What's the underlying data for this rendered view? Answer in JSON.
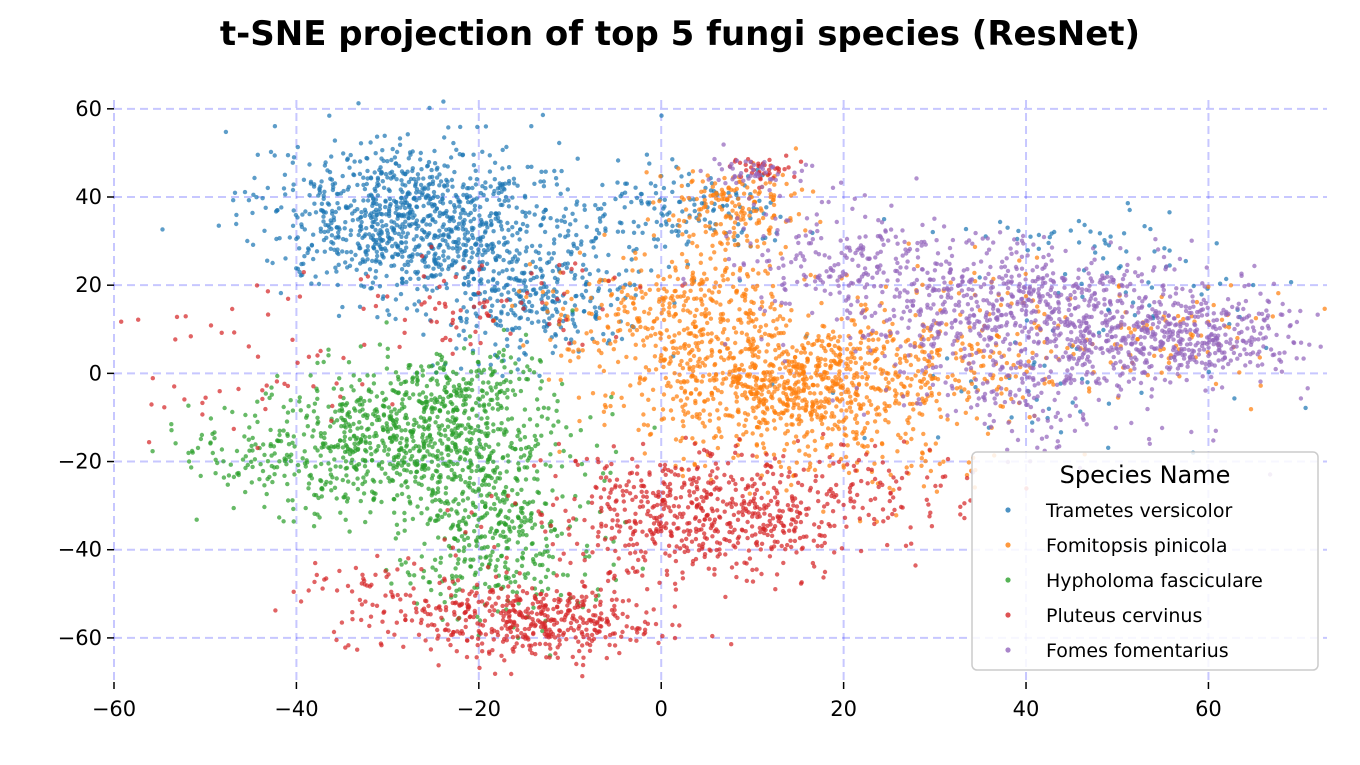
{
  "chart_data": {
    "type": "scatter",
    "title": "t-SNE projection of top 5 fungi species (ResNet)",
    "xlabel": "",
    "ylabel": "",
    "xlim": [
      -60,
      73
    ],
    "ylim": [
      -70,
      62
    ],
    "x_ticks": [
      -60,
      -40,
      -20,
      0,
      20,
      40,
      60
    ],
    "y_ticks": [
      -60,
      -40,
      -20,
      0,
      20,
      40,
      60
    ],
    "x_tick_labels": [
      "−60",
      "−40",
      "−20",
      "0",
      "20",
      "40",
      "60"
    ],
    "y_tick_labels": [
      "−60",
      "−40",
      "−20",
      "0",
      "20",
      "40",
      "60"
    ],
    "grid": true,
    "grid_color": "#0000ff",
    "grid_style": "dashed",
    "legend": {
      "title": "Species Name",
      "placement": "lower-right"
    },
    "series": [
      {
        "name": "Trametes versicolor",
        "color": "#1f77b4",
        "clusters": [
          {
            "cx": -27,
            "cy": 35,
            "sx": 8,
            "sy": 9,
            "n": 1000
          },
          {
            "cx": -14,
            "cy": 18,
            "sx": 6,
            "sy": 8,
            "n": 350
          },
          {
            "cx": 2,
            "cy": 38,
            "sx": 6,
            "sy": 5,
            "n": 150
          },
          {
            "cx": 45,
            "cy": 30,
            "sx": 7,
            "sy": 5,
            "n": 45
          },
          {
            "cx": 55,
            "cy": 18,
            "sx": 6,
            "sy": 6,
            "n": 30
          },
          {
            "cx": 40,
            "cy": -5,
            "sx": 12,
            "sy": 8,
            "n": 40
          }
        ]
      },
      {
        "name": "Fomitopsis pinicola",
        "color": "#ff7f0e",
        "clusters": [
          {
            "cx": 14,
            "cy": -3,
            "sx": 9,
            "sy": 7,
            "n": 900
          },
          {
            "cx": 2,
            "cy": 14,
            "sx": 7,
            "sy": 7,
            "n": 350
          },
          {
            "cx": 8,
            "cy": 38,
            "sx": 4,
            "sy": 5,
            "n": 180
          },
          {
            "cx": 32,
            "cy": 5,
            "sx": 8,
            "sy": 9,
            "n": 200
          },
          {
            "cx": 55,
            "cy": 8,
            "sx": 8,
            "sy": 6,
            "n": 80
          },
          {
            "cx": 22,
            "cy": -22,
            "sx": 8,
            "sy": 6,
            "n": 70
          }
        ]
      },
      {
        "name": "Hypholoma fasciculare",
        "color": "#2ca02c",
        "clusters": [
          {
            "cx": -27,
            "cy": -15,
            "sx": 8,
            "sy": 9,
            "n": 900
          },
          {
            "cx": -18,
            "cy": -38,
            "sx": 5,
            "sy": 9,
            "n": 350
          },
          {
            "cx": -42,
            "cy": -20,
            "sx": 4,
            "sy": 5,
            "n": 80
          },
          {
            "cx": -50,
            "cy": -17,
            "sx": 3,
            "sy": 3,
            "n": 15
          },
          {
            "cx": -22,
            "cy": -2,
            "sx": 4,
            "sy": 4,
            "n": 100
          }
        ]
      },
      {
        "name": "Pluteus cervinus",
        "color": "#d62728",
        "clusters": [
          {
            "cx": 5,
            "cy": -32,
            "sx": 9,
            "sy": 7,
            "n": 650
          },
          {
            "cx": -14,
            "cy": -56,
            "sx": 7,
            "sy": 4,
            "n": 450
          },
          {
            "cx": -30,
            "cy": -50,
            "sx": 6,
            "sy": 5,
            "n": 80
          },
          {
            "cx": 11,
            "cy": 47,
            "sx": 2,
            "sy": 1.5,
            "n": 40
          },
          {
            "cx": -44,
            "cy": 0,
            "sx": 7,
            "sy": 10,
            "n": 50
          },
          {
            "cx": -20,
            "cy": 15,
            "sx": 8,
            "sy": 6,
            "n": 80
          },
          {
            "cx": 24,
            "cy": -26,
            "sx": 7,
            "sy": 6,
            "n": 60
          }
        ]
      },
      {
        "name": "Fomes fomentarius",
        "color": "#9467bd",
        "clusters": [
          {
            "cx": 40,
            "cy": 14,
            "sx": 10,
            "sy": 8,
            "n": 700
          },
          {
            "cx": 57,
            "cy": 8,
            "sx": 7,
            "sy": 5,
            "n": 400
          },
          {
            "cx": 20,
            "cy": 25,
            "sx": 7,
            "sy": 6,
            "n": 200
          },
          {
            "cx": 10,
            "cy": 45,
            "sx": 3,
            "sy": 2,
            "n": 50
          },
          {
            "cx": 42,
            "cy": -5,
            "sx": 8,
            "sy": 6,
            "n": 150
          }
        ]
      }
    ]
  }
}
